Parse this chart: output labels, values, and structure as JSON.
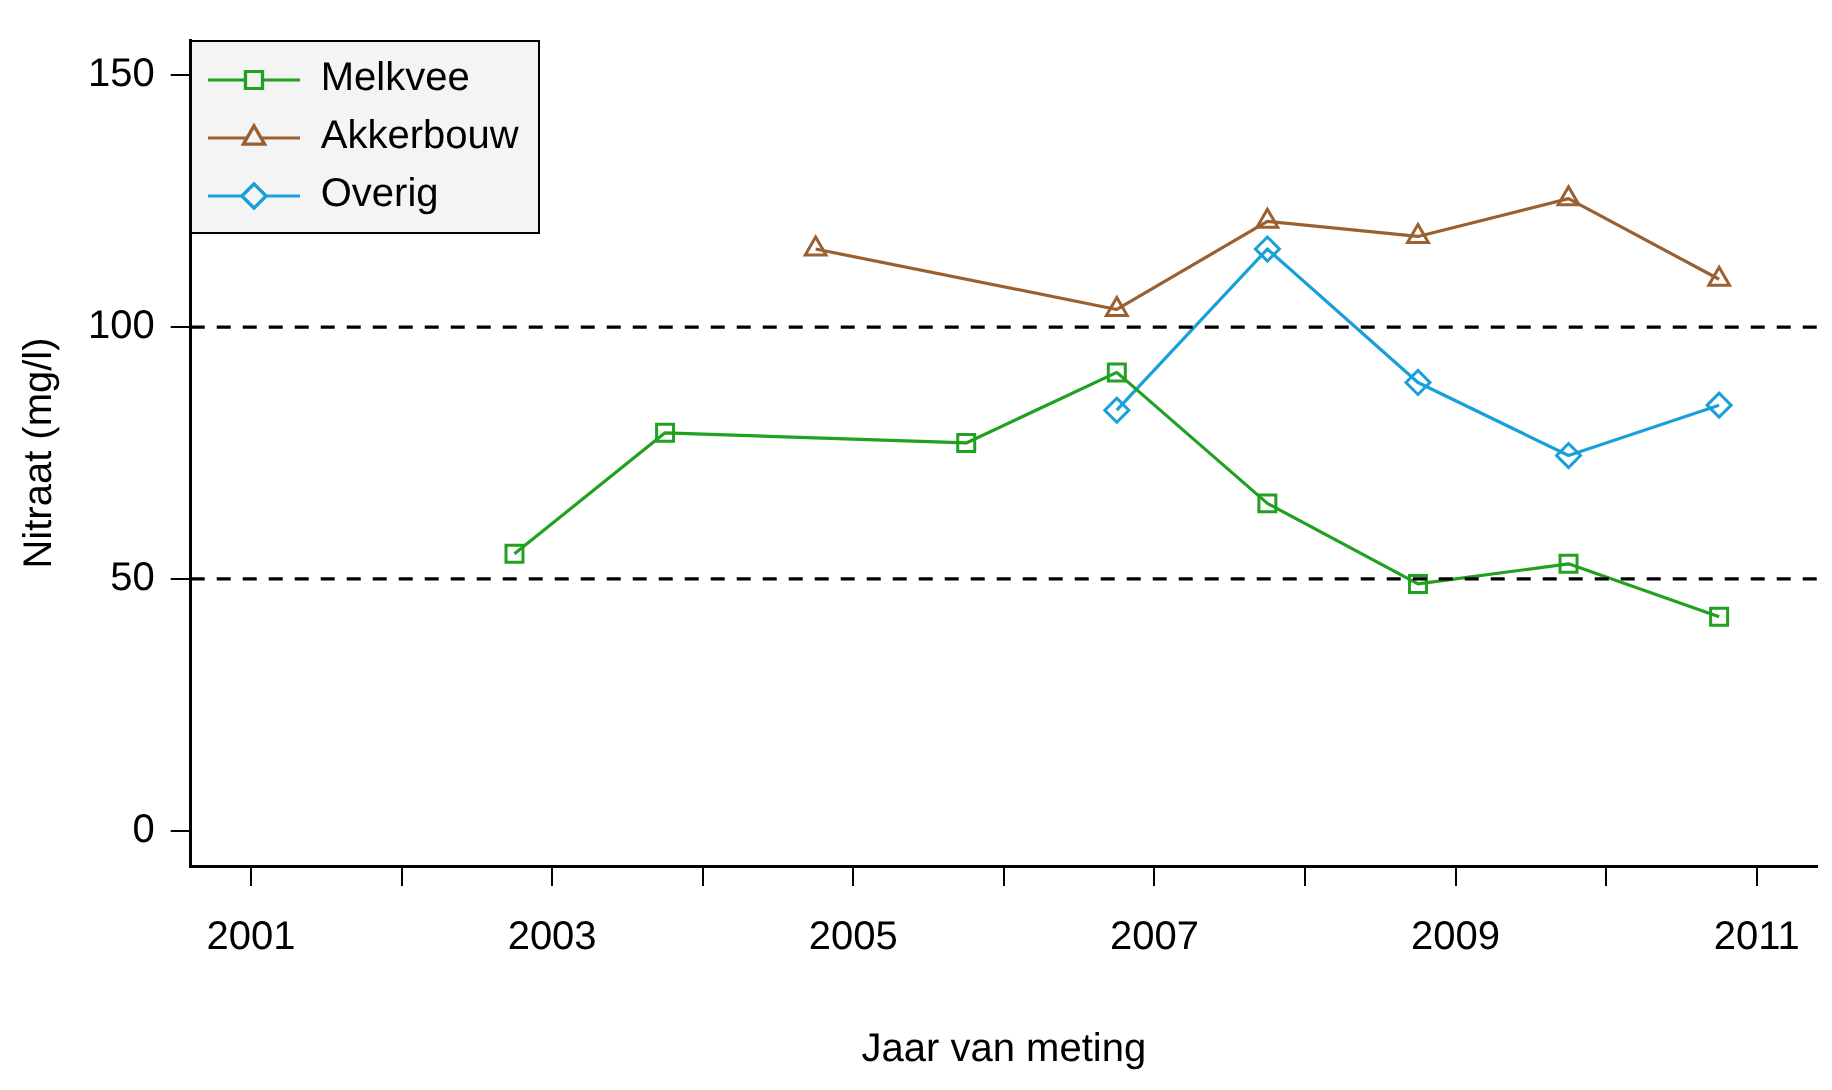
{
  "chart_data": {
    "type": "line",
    "xlabel": "Jaar van meting",
    "ylabel": "Nitraat (mg/l)",
    "x": [
      2002.75,
      2003.75,
      2004.75,
      2005.75,
      2006.75,
      2007.75,
      2008.75,
      2009.75,
      2010.75
    ],
    "series": [
      {
        "name": "Melkvee",
        "color": "#22a022",
        "marker": "square",
        "values": [
          55,
          79,
          null,
          77,
          91,
          65,
          49,
          53,
          42.5
        ]
      },
      {
        "name": "Akkerbouw",
        "color": "#9a6030",
        "marker": "triangle",
        "values": [
          null,
          null,
          115.5,
          null,
          103.5,
          121,
          118,
          125.5,
          109.5
        ]
      },
      {
        "name": "Overig",
        "color": "#1aa0d8",
        "marker": "diamond",
        "values": [
          null,
          null,
          null,
          null,
          83.5,
          115.5,
          89,
          74.5,
          84.5
        ]
      }
    ],
    "xlim": [
      2000.6,
      2011.4
    ],
    "xticks": [
      2001,
      {
        "value": 2002,
        "label": null
      },
      2003,
      {
        "value": 2004,
        "label": null
      },
      2005,
      {
        "value": 2006,
        "label": null
      },
      2007,
      {
        "value": 2008,
        "label": null
      },
      2009,
      {
        "value": 2010,
        "label": null
      },
      2011
    ],
    "ylim": [
      -7,
      157
    ],
    "yticks": [
      0,
      50,
      100,
      150
    ],
    "ref_lines": [
      {
        "axis": "y",
        "value": 50,
        "line_style": "dashed",
        "color": "#000000"
      },
      {
        "axis": "y",
        "value": 100,
        "line_style": "dashed",
        "color": "#000000"
      }
    ],
    "grid": false,
    "legend": "top left"
  }
}
